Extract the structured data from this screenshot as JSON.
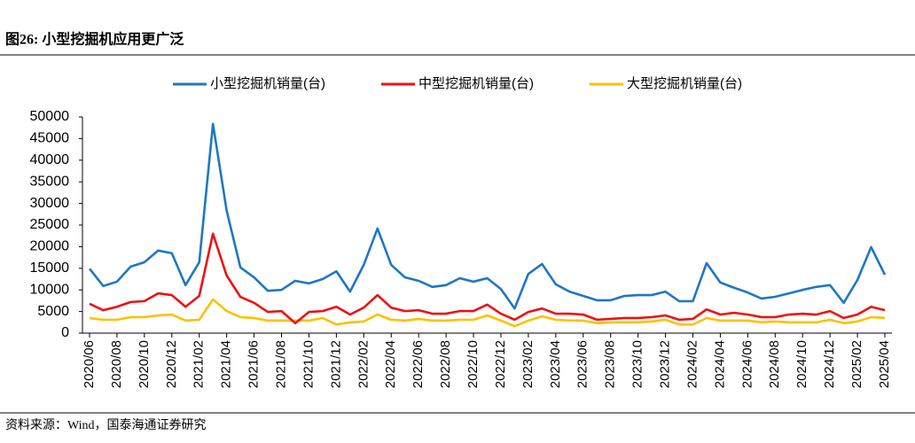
{
  "chart_data": {
    "type": "line",
    "title": "图26: 小型挖掘机应用更广泛",
    "source": "资料来源：Wind，国泰海通证券研究",
    "categories": [
      "2020/06",
      null,
      "2020/08",
      null,
      "2020/10",
      null,
      "2020/12",
      null,
      "2021/02",
      null,
      "2021/04",
      null,
      "2021/06",
      null,
      "2021/08",
      null,
      "2021/10",
      null,
      "2021/12",
      null,
      "2022/02",
      null,
      "2022/04",
      null,
      "2022/06",
      null,
      "2022/08",
      null,
      "2022/10",
      null,
      "2022/12",
      null,
      "2023/02",
      null,
      "2023/04",
      null,
      "2023/06",
      null,
      "2023/08",
      null,
      "2023/10",
      null,
      "2023/12",
      null,
      "2024/02",
      null,
      "2024/04",
      null,
      "2024/06",
      null,
      "2024/08",
      null,
      "2024/10",
      null,
      "2024/12",
      null,
      "2025/02",
      null,
      "2025/04"
    ],
    "series": [
      {
        "name": "小型挖掘机销量(台)",
        "color": "#1f77c4",
        "values": [
          14900,
          10900,
          11900,
          15400,
          16400,
          19100,
          18500,
          11100,
          16400,
          48400,
          28300,
          15200,
          12900,
          9800,
          10000,
          12100,
          11500,
          12500,
          14300,
          9600,
          15800,
          24200,
          15800,
          12900,
          12100,
          10700,
          11100,
          12700,
          11900,
          12700,
          10200,
          5700,
          13700,
          16000,
          11300,
          9600,
          8600,
          7600,
          7600,
          8600,
          8800,
          8800,
          9600,
          7400,
          7400,
          16200,
          11700,
          10500,
          9400,
          8000,
          8400,
          9200,
          10000,
          10700,
          11100,
          7000,
          12300,
          19900,
          13500
        ]
      },
      {
        "name": "中型挖掘机销量(台)",
        "color": "#ee1111",
        "values": [
          6800,
          5300,
          6100,
          7200,
          7400,
          9200,
          8800,
          6100,
          8600,
          23000,
          13300,
          8400,
          7000,
          4900,
          5100,
          2300,
          4900,
          5100,
          6100,
          4300,
          5900,
          8800,
          5900,
          5100,
          5300,
          4500,
          4500,
          5100,
          5100,
          6600,
          4500,
          3100,
          4900,
          5700,
          4500,
          4500,
          4300,
          3100,
          3300,
          3500,
          3500,
          3700,
          4100,
          3100,
          3300,
          5500,
          4300,
          4700,
          4300,
          3700,
          3700,
          4300,
          4500,
          4300,
          5100,
          3500,
          4300,
          6100,
          5300
        ]
      },
      {
        "name": "大型挖掘机销量(台)",
        "color": "#ffc000",
        "values": [
          3500,
          3100,
          3100,
          3700,
          3700,
          4100,
          4300,
          2900,
          3100,
          7800,
          5100,
          3700,
          3500,
          2900,
          2900,
          2900,
          2900,
          3500,
          2000,
          2500,
          2700,
          4300,
          3100,
          2900,
          3300,
          2900,
          2900,
          3100,
          3100,
          4100,
          2900,
          1600,
          2900,
          3900,
          3100,
          2900,
          2900,
          2300,
          2500,
          2500,
          2500,
          2700,
          3100,
          2000,
          2000,
          3500,
          2900,
          2900,
          2900,
          2500,
          2700,
          2500,
          2500,
          2500,
          3100,
          2300,
          2700,
          3700,
          3500
        ]
      }
    ],
    "ylim": [
      0,
      50000
    ],
    "yticks": [
      0,
      5000,
      10000,
      15000,
      20000,
      25000,
      30000,
      35000,
      40000,
      45000,
      50000
    ],
    "grid": false,
    "legend": "top"
  }
}
